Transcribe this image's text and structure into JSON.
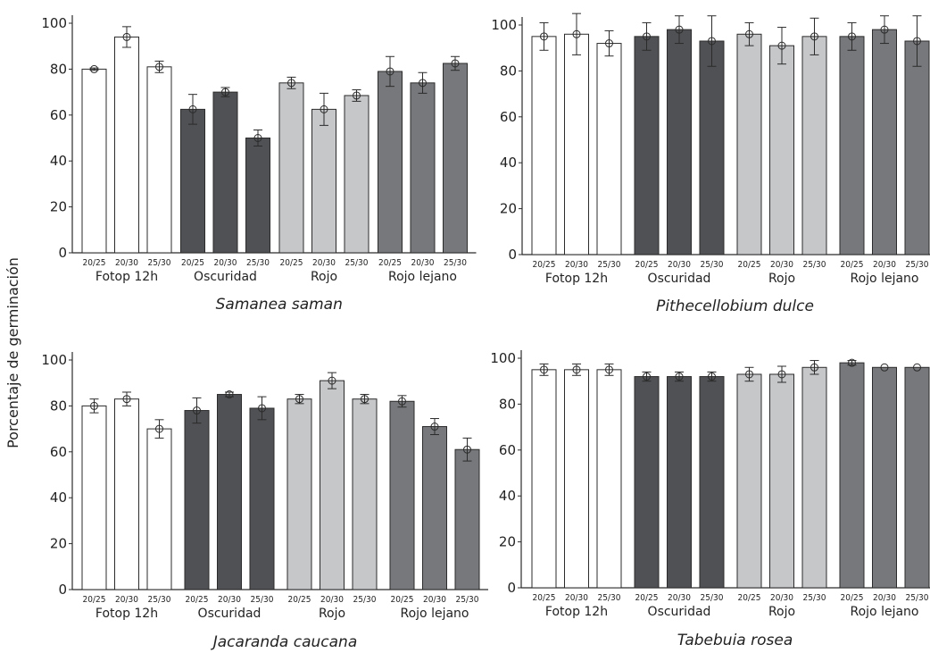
{
  "figure": {
    "ylabel": "Porcentaje de germinación"
  },
  "styles": {
    "group_colors": [
      "#ffffff",
      "#505154",
      "#c6c7c9",
      "#77787b"
    ],
    "stroke": "#2b2b2b"
  },
  "chart_data": [
    {
      "type": "bar",
      "title": "Samanea saman",
      "groups": [
        "Fotop 12h",
        "Oscuridad",
        "Rojo",
        "Rojo lejano"
      ],
      "conditions": [
        "20/25",
        "20/30",
        "25/30"
      ],
      "ylim": [
        0,
        100
      ],
      "yticks": [
        0,
        20,
        40,
        60,
        80,
        100
      ],
      "series": [
        {
          "group": "Fotop 12h",
          "values": [
            80,
            94,
            81
          ],
          "errors": [
            0.5,
            4.5,
            2.5
          ]
        },
        {
          "group": "Oscuridad",
          "values": [
            62.5,
            70,
            50
          ],
          "errors": [
            6.5,
            2,
            3.5
          ]
        },
        {
          "group": "Rojo",
          "values": [
            74,
            62.5,
            68.5
          ],
          "errors": [
            2.5,
            7,
            2.5
          ]
        },
        {
          "group": "Rojo lejano",
          "values": [
            79,
            74,
            82.5
          ],
          "errors": [
            6.5,
            4.5,
            3
          ]
        }
      ]
    },
    {
      "type": "bar",
      "title": "Pithecellobium dulce",
      "groups": [
        "Fotop 12h",
        "Oscuridad",
        "Rojo",
        "Rojo lejano"
      ],
      "conditions": [
        "20/25",
        "20/30",
        "25/30"
      ],
      "ylim": [
        0,
        100
      ],
      "yticks": [
        0,
        20,
        40,
        60,
        80,
        100
      ],
      "series": [
        {
          "group": "Fotop 12h",
          "values": [
            95,
            96,
            92
          ],
          "errors": [
            6,
            9,
            5.5
          ]
        },
        {
          "group": "Oscuridad",
          "values": [
            95,
            98,
            93
          ],
          "errors": [
            6,
            6,
            11
          ]
        },
        {
          "group": "Rojo",
          "values": [
            96,
            91,
            95
          ],
          "errors": [
            5,
            8,
            8
          ]
        },
        {
          "group": "Rojo lejano",
          "values": [
            95,
            98,
            93
          ],
          "errors": [
            6,
            6,
            11
          ]
        }
      ]
    },
    {
      "type": "bar",
      "title": "Jacaranda caucana",
      "groups": [
        "Fotop 12h",
        "Oscuridad",
        "Rojo",
        "Rojo lejano"
      ],
      "conditions": [
        "20/25",
        "20/30",
        "25/30"
      ],
      "ylim": [
        0,
        100
      ],
      "yticks": [
        0,
        20,
        40,
        60,
        80,
        100
      ],
      "series": [
        {
          "group": "Fotop 12h",
          "values": [
            80,
            83,
            70
          ],
          "errors": [
            3,
            3,
            4
          ]
        },
        {
          "group": "Oscuridad",
          "values": [
            78,
            85,
            79
          ],
          "errors": [
            5.5,
            1,
            5
          ]
        },
        {
          "group": "Rojo",
          "values": [
            83,
            91,
            83
          ],
          "errors": [
            2,
            3.5,
            2
          ]
        },
        {
          "group": "Rojo lejano",
          "values": [
            82,
            71,
            61
          ],
          "errors": [
            2.5,
            3.5,
            5
          ]
        }
      ]
    },
    {
      "type": "bar",
      "title": "Tabebuia rosea",
      "groups": [
        "Fotop 12h",
        "Oscuridad",
        "Rojo",
        "Rojo lejano"
      ],
      "conditions": [
        "20/25",
        "20/30",
        "25/30"
      ],
      "ylim": [
        0,
        100
      ],
      "yticks": [
        0,
        20,
        40,
        60,
        80,
        100
      ],
      "series": [
        {
          "group": "Fotop 12h",
          "values": [
            95,
            95,
            95
          ],
          "errors": [
            2.5,
            2.5,
            2.5
          ]
        },
        {
          "group": "Oscuridad",
          "values": [
            92,
            92,
            92
          ],
          "errors": [
            2,
            2,
            2
          ]
        },
        {
          "group": "Rojo",
          "values": [
            93,
            93,
            96
          ],
          "errors": [
            3,
            3.5,
            3
          ]
        },
        {
          "group": "Rojo lejano",
          "values": [
            98,
            96,
            96
          ],
          "errors": [
            1,
            0,
            0
          ]
        }
      ]
    }
  ]
}
